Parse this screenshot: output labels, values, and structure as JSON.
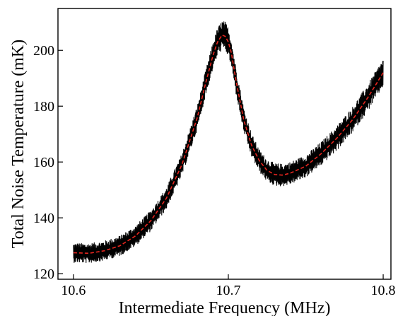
{
  "chart_data": {
    "type": "line",
    "title": "",
    "xlabel": "Intermediate Frequency (MHz)",
    "ylabel": "Total Noise Temperature (mK)",
    "xlim": [
      10.59,
      10.805
    ],
    "ylim": [
      118,
      215
    ],
    "x_ticks": [
      10.6,
      10.7,
      10.8
    ],
    "x_tick_labels": [
      "10.6",
      "10.7",
      "10.8"
    ],
    "y_ticks": [
      120,
      140,
      160,
      180,
      200
    ],
    "y_tick_labels": [
      "120",
      "140",
      "160",
      "180",
      "200"
    ],
    "grid": false,
    "legend": "none",
    "colors": {
      "measured": "#000000",
      "fit": "#e8261f"
    },
    "series": [
      {
        "style": "noisy-band",
        "x": [
          10.6,
          10.61,
          10.62,
          10.63,
          10.64,
          10.65,
          10.66,
          10.67,
          10.68,
          10.685,
          10.69,
          10.693,
          10.696,
          10.698,
          10.7,
          10.702,
          10.705,
          10.71,
          10.715,
          10.72,
          10.725,
          10.73,
          10.735,
          10.74,
          10.75,
          10.76,
          10.77,
          10.78,
          10.79,
          10.8
        ],
        "values": [
          127.5,
          127.3,
          128.2,
          130.0,
          133.5,
          139.0,
          147.0,
          159.0,
          176.0,
          187.5,
          198.0,
          203.0,
          205.5,
          205.0,
          203.0,
          199.0,
          189.0,
          175.0,
          166.0,
          160.5,
          157.0,
          155.5,
          155.3,
          156.0,
          158.5,
          163.0,
          168.5,
          175.0,
          183.0,
          192.0
        ],
        "band_halfwidth": [
          3.5,
          3.5,
          3.5,
          3.6,
          3.6,
          3.7,
          3.8,
          4.0,
          4.3,
          4.5,
          4.8,
          5.0,
          5.2,
          5.2,
          5.2,
          5.0,
          4.8,
          4.4,
          4.2,
          4.0,
          4.0,
          4.0,
          4.0,
          4.0,
          4.0,
          4.2,
          4.4,
          4.6,
          4.8,
          5.0
        ]
      },
      {
        "style": "dashed-fit",
        "x": [
          10.6,
          10.61,
          10.62,
          10.63,
          10.64,
          10.65,
          10.66,
          10.67,
          10.68,
          10.685,
          10.69,
          10.693,
          10.696,
          10.698,
          10.7,
          10.702,
          10.705,
          10.71,
          10.715,
          10.72,
          10.725,
          10.73,
          10.735,
          10.74,
          10.75,
          10.76,
          10.77,
          10.78,
          10.79,
          10.8
        ],
        "values": [
          127.5,
          127.3,
          128.2,
          130.0,
          133.5,
          139.0,
          147.0,
          159.0,
          176.0,
          187.5,
          198.0,
          203.0,
          205.5,
          205.0,
          203.0,
          199.0,
          189.0,
          175.0,
          166.0,
          160.5,
          157.0,
          155.5,
          155.3,
          156.0,
          158.5,
          163.0,
          168.5,
          175.0,
          183.0,
          192.0
        ]
      }
    ]
  }
}
